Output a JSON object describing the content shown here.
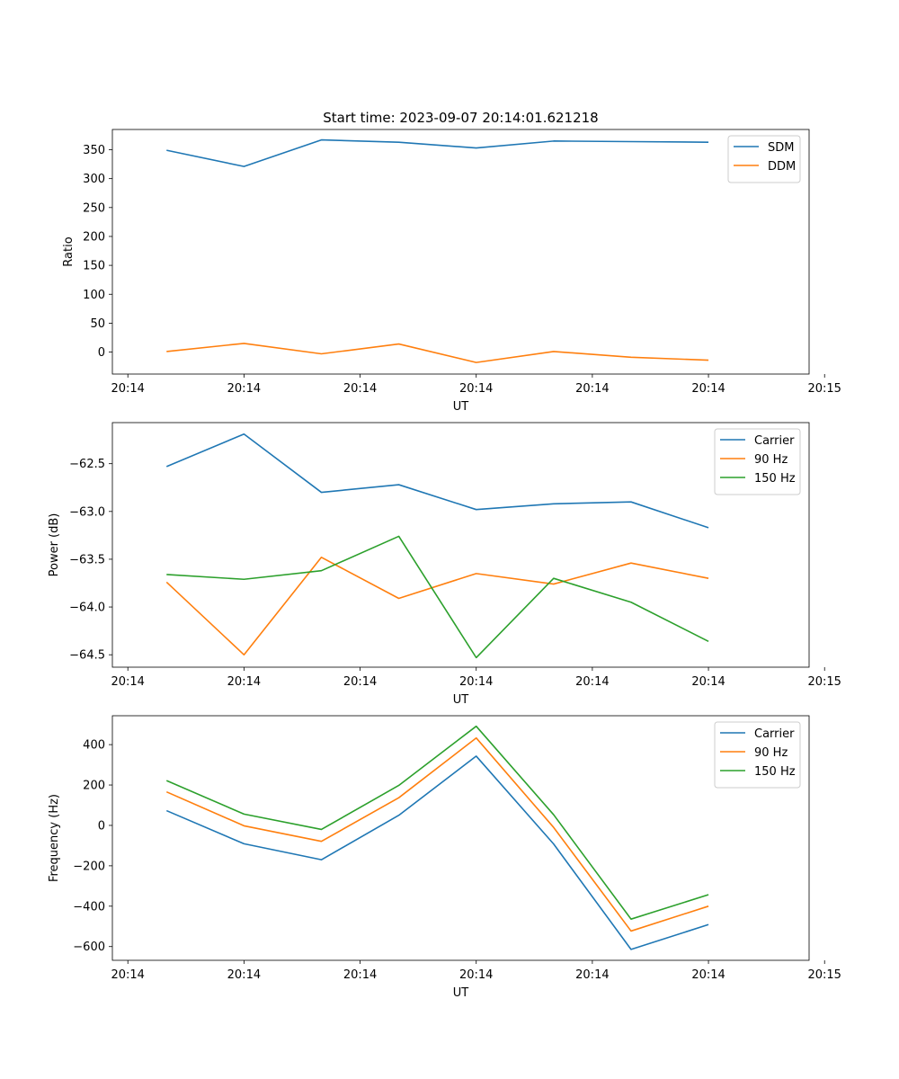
{
  "title": "Start time: 2023-09-07 20:14:01.621218",
  "colors": {
    "blue": "#1f77b4",
    "orange": "#ff7f0e",
    "green": "#2ca02c"
  },
  "chart_data": [
    {
      "type": "line",
      "title": "Start time: 2023-09-07 20:14:01.621218",
      "xlabel": "UT",
      "ylabel": "Ratio",
      "x": [
        1,
        2,
        3,
        4,
        5,
        6,
        7,
        8
      ],
      "xlim": [
        0.3,
        9.3
      ],
      "xticks": [
        {
          "value": 0.5,
          "label": "20:14"
        },
        {
          "value": 2.0,
          "label": "20:14"
        },
        {
          "value": 3.5,
          "label": "20:14"
        },
        {
          "value": 5.0,
          "label": "20:14"
        },
        {
          "value": 6.5,
          "label": "20:14"
        },
        {
          "value": 8.0,
          "label": "20:14"
        },
        {
          "value": 9.5,
          "label": "20:15"
        }
      ],
      "ylim": [
        -38,
        385
      ],
      "yticks": [
        0,
        50,
        100,
        150,
        200,
        250,
        300,
        350
      ],
      "legend": "top-right",
      "series": [
        {
          "name": "SDM",
          "color": "#1f77b4",
          "values": [
            349,
            321,
            367,
            363,
            353,
            365,
            364,
            363
          ]
        },
        {
          "name": "DDM",
          "color": "#ff7f0e",
          "values": [
            1,
            15,
            -3,
            14,
            -18,
            1,
            -9,
            -14
          ]
        }
      ]
    },
    {
      "type": "line",
      "title": "",
      "xlabel": "UT",
      "ylabel": "Power (dB)",
      "x": [
        1,
        2,
        3,
        4,
        5,
        6,
        7,
        8
      ],
      "xlim": [
        0.3,
        9.3
      ],
      "xticks": [
        {
          "value": 0.5,
          "label": "20:14"
        },
        {
          "value": 2.0,
          "label": "20:14"
        },
        {
          "value": 3.5,
          "label": "20:14"
        },
        {
          "value": 5.0,
          "label": "20:14"
        },
        {
          "value": 6.5,
          "label": "20:14"
        },
        {
          "value": 8.0,
          "label": "20:14"
        },
        {
          "value": 9.5,
          "label": "20:15"
        }
      ],
      "ylim": [
        -64.63,
        -62.07
      ],
      "yticks": [
        -64.5,
        -64.0,
        -63.5,
        -63.0,
        -62.5
      ],
      "ytick_labels": [
        "−64.5",
        "−64.0",
        "−63.5",
        "−63.0",
        "−62.5"
      ],
      "legend": "top-right",
      "series": [
        {
          "name": "Carrier",
          "color": "#1f77b4",
          "values": [
            -62.53,
            -62.19,
            -62.8,
            -62.72,
            -62.98,
            -62.92,
            -62.9,
            -63.17
          ]
        },
        {
          "name": "90 Hz",
          "color": "#ff7f0e",
          "values": [
            -63.74,
            -64.5,
            -63.48,
            -63.91,
            -63.65,
            -63.76,
            -63.54,
            -63.7
          ]
        },
        {
          "name": "150 Hz",
          "color": "#2ca02c",
          "values": [
            -63.66,
            -63.71,
            -63.62,
            -63.26,
            -64.53,
            -63.7,
            -63.95,
            -64.36
          ]
        }
      ]
    },
    {
      "type": "line",
      "title": "",
      "xlabel": "UT",
      "ylabel": "Frequency (Hz)",
      "x": [
        1,
        2,
        3,
        4,
        5,
        6,
        7,
        8
      ],
      "xlim": [
        0.3,
        9.3
      ],
      "xticks": [
        {
          "value": 0.5,
          "label": "20:14"
        },
        {
          "value": 2.0,
          "label": "20:14"
        },
        {
          "value": 3.5,
          "label": "20:14"
        },
        {
          "value": 5.0,
          "label": "20:14"
        },
        {
          "value": 6.5,
          "label": "20:14"
        },
        {
          "value": 8.0,
          "label": "20:14"
        },
        {
          "value": 9.5,
          "label": "20:15"
        }
      ],
      "ylim": [
        -668,
        543
      ],
      "yticks": [
        -600,
        -400,
        -200,
        0,
        200,
        400
      ],
      "ytick_labels": [
        "−600",
        "−400",
        "−200",
        "0",
        "200",
        "400"
      ],
      "legend": "top-right",
      "series": [
        {
          "name": "Carrier",
          "color": "#1f77b4",
          "values": [
            73,
            -91,
            -170,
            50,
            343,
            -92,
            -614,
            -491
          ]
        },
        {
          "name": "90 Hz",
          "color": "#ff7f0e",
          "values": [
            166,
            -2,
            -79,
            137,
            433,
            -10,
            -523,
            -400
          ]
        },
        {
          "name": "150 Hz",
          "color": "#2ca02c",
          "values": [
            222,
            56,
            -20,
            198,
            491,
            53,
            -464,
            -343
          ]
        }
      ]
    }
  ]
}
